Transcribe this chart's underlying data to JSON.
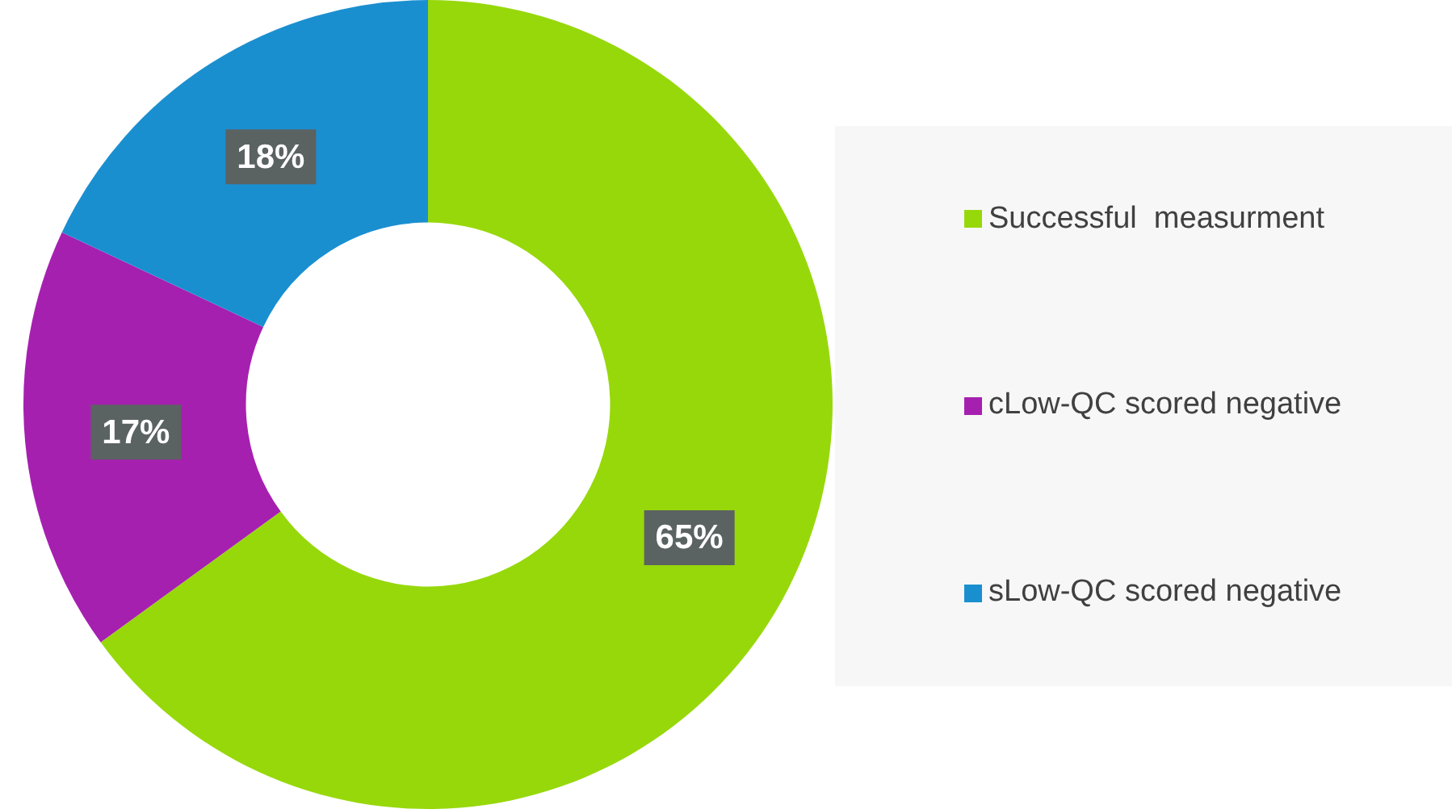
{
  "chart_data": {
    "type": "donut",
    "categories": [
      "Successful  measurment",
      "cLow-QC scored negative",
      "sLow-QC scored negative"
    ],
    "values": [
      65,
      17,
      18
    ],
    "colors": [
      "#97d80b",
      "#a620b0",
      "#1a8fd0"
    ],
    "value_labels": [
      "65%",
      "17%",
      "18%"
    ],
    "legend": "right"
  }
}
